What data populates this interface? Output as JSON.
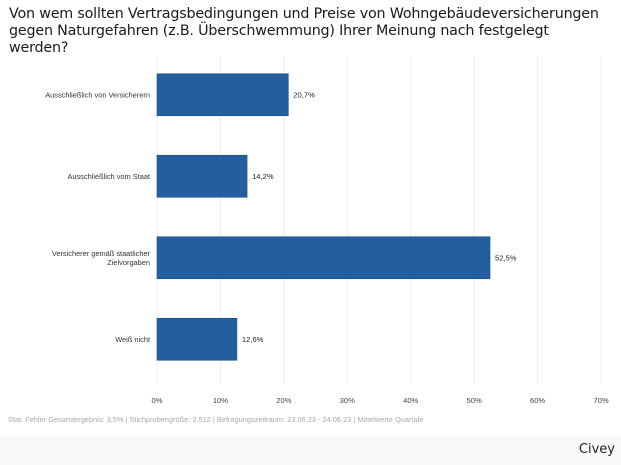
{
  "chart_data": {
    "type": "bar",
    "orientation": "horizontal",
    "title": "Von wem sollten Vertragsbedingungen und Preise von Wohngebäudeversicherungen gegen Naturgefahren (z.B. Überschwemmung) Ihrer Meinung nach festgelegt werden?",
    "xlabel": "",
    "ylabel": "",
    "categories": [
      [
        "Ausschließlich von Versicherern"
      ],
      [
        "Ausschließlich vom Staat"
      ],
      [
        "Versicherer gemäß staatlicher",
        "Zielvorgaben"
      ],
      [
        "Weiß nicht"
      ]
    ],
    "values": [
      20.7,
      14.2,
      52.5,
      12.6
    ],
    "value_labels": [
      "20,7%",
      "14,2%",
      "52,5%",
      "12,6%"
    ],
    "xlim": [
      0,
      70
    ],
    "ticks": [
      0,
      10,
      20,
      30,
      40,
      50,
      60,
      70
    ],
    "tick_labels": [
      "0%",
      "10%",
      "20%",
      "30%",
      "40%",
      "50%",
      "60%",
      "70%"
    ],
    "grid": true,
    "legend": "none",
    "bar_color": "#235fa0"
  },
  "footnote": "Stat. Fehler Gesamtergebnis: 3,5% | Stichprobengröße: 2.512 | Befragungszeitraum: 23.06.23 - 24.06.23 | Mittelwerte Quartale",
  "brand": "Civey"
}
